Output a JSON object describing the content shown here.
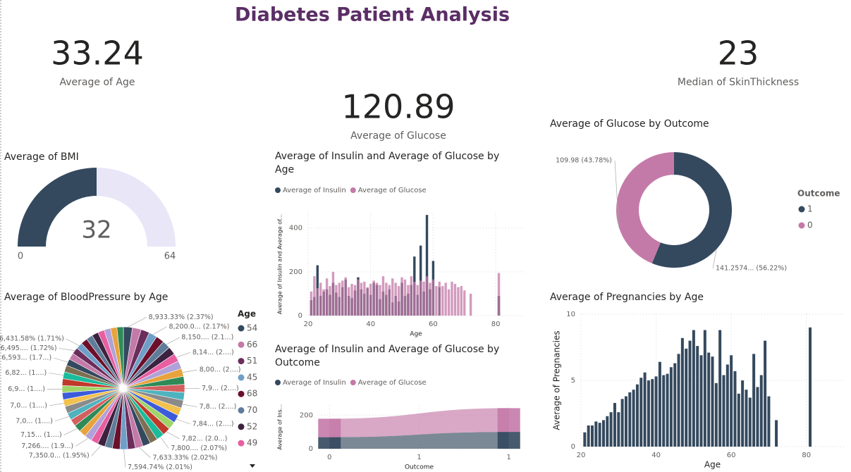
{
  "title": "Diabetes Patient Analysis",
  "cards": [
    {
      "value": 33.24,
      "label": "Average of Age"
    },
    {
      "value": 120.89,
      "label": "Average of Glucose"
    },
    {
      "value": 23,
      "label": "Median of SkinThickness"
    }
  ],
  "chart_data": [
    {
      "type": "gauge",
      "title": "Average of BMI",
      "value": 32,
      "ylim": [
        0,
        64
      ],
      "colors": [
        "#34495e",
        "#e8e6f7"
      ]
    },
    {
      "type": "pie",
      "title": "Average of BloodPressure by Age",
      "values": [
        2.37,
        2.3,
        2.25,
        2.17,
        2.15,
        2.13,
        2.12,
        2.11,
        2.1,
        2.09,
        2.09,
        2.08,
        2.08,
        2.08,
        2.08,
        2.08,
        2.07,
        2.07,
        2.07,
        2.05,
        2.04,
        2.02,
        2.02,
        2.01,
        2.0,
        1.98,
        1.95,
        1.93,
        1.9,
        1.89,
        1.88,
        1.87,
        1.86,
        1.85,
        1.85,
        1.84,
        1.83,
        1.82,
        1.8,
        1.78,
        1.76,
        1.74,
        1.72,
        1.71,
        1.7,
        1.7,
        1.7,
        1.7,
        1.69,
        1.69,
        1.69
      ],
      "value_labels": [
        "8,933.33% (2.37%)",
        null,
        null,
        "8,200.0... (2.17%)",
        null,
        "8,150.... (2.1...)",
        null,
        "8,14... (2....)",
        null,
        "8,00... (2....)",
        null,
        "7,9... (2....)",
        null,
        "7,8... (2....)",
        null,
        "7,84... (2....)",
        null,
        "7,82... (2.0...)",
        "7,800.... (2.07%)",
        null,
        null,
        "7,633.33% (2.02%)",
        null,
        "7,594.74% (2.01%)",
        null,
        null,
        "7,350.0... (1.95%)",
        null,
        "7,266.... (1.9...)",
        null,
        "7,15... (1....)",
        null,
        "7,0... (1....)",
        null,
        "7,0... (1....)",
        null,
        "6,9... (1....)",
        null,
        "6,82... (1....)",
        null,
        "6,593... (1.7...)",
        null,
        "6,495.... (1.72%)",
        "6,431.58% (1.71%)",
        null,
        null,
        null,
        null,
        null,
        null,
        null
      ],
      "colors": [
        "#34495e",
        "#c47aa8",
        "#6b2d5c",
        "#6f9fc8",
        "#6b0f2b",
        "#5f7d9a",
        "#3d2240",
        "#e85ea0",
        "#b0a1d8",
        "#e8a33d",
        "#2e8b57",
        "#d35f5f",
        "#4fb3bf",
        "#8a8a8a",
        "#f2c14e",
        "#3b5bdb",
        "#a0d468",
        "#c0392b",
        "#1abc9c",
        "#7f6f52"
      ],
      "legend_title": "Age",
      "legend": [
        {
          "name": "54",
          "color": "#34495e"
        },
        {
          "name": "66",
          "color": "#c47aa8"
        },
        {
          "name": "51",
          "color": "#6b2d5c"
        },
        {
          "name": "45",
          "color": "#6f9fc8"
        },
        {
          "name": "68",
          "color": "#6b0f2b"
        },
        {
          "name": "70",
          "color": "#5f7d9a"
        },
        {
          "name": "52",
          "color": "#3d2240"
        },
        {
          "name": "49",
          "color": "#e85ea0"
        }
      ]
    },
    {
      "type": "columns",
      "title": "Average of Insulin and Average of Glucose by Age",
      "x_label": "Age",
      "y_label": "Average of Insulin and Average of...",
      "x": [
        21,
        22,
        23,
        24,
        25,
        26,
        27,
        28,
        29,
        30,
        31,
        32,
        33,
        34,
        35,
        36,
        37,
        38,
        39,
        40,
        41,
        42,
        43,
        44,
        45,
        46,
        47,
        48,
        49,
        50,
        51,
        52,
        53,
        54,
        55,
        56,
        57,
        58,
        59,
        60,
        61,
        62,
        63,
        64,
        65,
        66,
        67,
        68,
        69,
        70,
        72,
        81
      ],
      "series": [
        {
          "name": "Average of Insulin",
          "color": "#34495e",
          "values": [
            70,
            85,
            230,
            90,
            110,
            120,
            95,
            150,
            105,
            85,
            130,
            165,
            90,
            80,
            115,
            175,
            120,
            100,
            125,
            95,
            150,
            140,
            75,
            110,
            95,
            120,
            60,
            90,
            65,
            150,
            90,
            100,
            140,
            270,
            95,
            320,
            110,
            460,
            120,
            250,
            0,
            130,
            0,
            0,
            0,
            0,
            0,
            0,
            0,
            0,
            0,
            90
          ]
        },
        {
          "name": "Average of Glucose",
          "color": "#c47aa8",
          "values": [
            110,
            180,
            125,
            150,
            120,
            170,
            135,
            200,
            140,
            150,
            160,
            175,
            130,
            145,
            140,
            165,
            150,
            155,
            130,
            145,
            160,
            150,
            140,
            180,
            150,
            140,
            170,
            150,
            135,
            175,
            165,
            140,
            180,
            155,
            140,
            160,
            155,
            180,
            150,
            165,
            135,
            155,
            135,
            150,
            120,
            155,
            145,
            130,
            135,
            115,
            100,
            195
          ]
        }
      ],
      "xlim": [
        20,
        89
      ],
      "xticks": [
        20,
        40,
        60,
        80
      ],
      "ylim": [
        0,
        470
      ],
      "yticks": [
        0,
        200,
        400
      ],
      "grid": true
    },
    {
      "type": "stacked_area",
      "title": "Average of Insulin and Average of Glucose by Outcome",
      "x_label": "Outcome",
      "y_label": "Average of Ins...",
      "x": [
        0,
        1
      ],
      "series": [
        {
          "name": "Average of Insulin",
          "color": "#34495e",
          "values": [
            68.79,
            100.34
          ]
        },
        {
          "name": "Average of Glucose",
          "color": "#c47aa8",
          "values": [
            109.98,
            141.26
          ]
        }
      ],
      "xlim": [
        -0.06,
        1.06
      ],
      "xticks": [
        0,
        {
          "value": 0.5,
          "label": "1"
        },
        1
      ],
      "ylim": [
        0,
        260
      ],
      "yticks": [
        0,
        200
      ],
      "grid": true
    },
    {
      "type": "donut",
      "title": "Average of Glucose by Outcome",
      "categories": [
        "1",
        "0"
      ],
      "values": [
        141.2574,
        109.98
      ],
      "value_labels": [
        "141.2574... (56.22%)",
        "109.98 (43.78%)"
      ],
      "colors": [
        "#34495e",
        "#c47aa8"
      ],
      "legend_title": "Outcome"
    },
    {
      "type": "bar",
      "title": "Average of Pregnancies by Age",
      "x_label": "Age",
      "y_label": "Average of Pregnancies",
      "x": [
        21,
        22,
        23,
        24,
        25,
        26,
        27,
        28,
        29,
        30,
        31,
        32,
        33,
        34,
        35,
        36,
        37,
        38,
        39,
        40,
        41,
        42,
        43,
        44,
        45,
        46,
        47,
        48,
        49,
        50,
        51,
        52,
        53,
        54,
        55,
        56,
        57,
        58,
        59,
        60,
        61,
        62,
        63,
        64,
        65,
        66,
        67,
        68,
        69,
        70,
        72,
        81
      ],
      "values": [
        1.08,
        1.6,
        1.6,
        1.9,
        1.8,
        2.0,
        2.3,
        2.6,
        3.3,
        2.6,
        3.6,
        3.8,
        4.1,
        4.3,
        4.7,
        5.2,
        5.6,
        5.0,
        5.1,
        5.3,
        6.4,
        5.4,
        5.5,
        6.0,
        6.3,
        7.0,
        8.2,
        7.4,
        8.0,
        8.8,
        7.6,
        6.9,
        8.8,
        7.1,
        6.8,
        4.8,
        8.8,
        5.4,
        6.2,
        6.9,
        5.7,
        4.0,
        5.0,
        4.3,
        3.7,
        7.0,
        4.5,
        5.4,
        8.0,
        3.8,
        2.0,
        9.0
      ],
      "color": "#34495e",
      "xlim": [
        20,
        90
      ],
      "xticks": [
        20,
        40,
        60,
        80
      ],
      "ylim": [
        0,
        10
      ],
      "yticks": [
        0,
        5,
        10
      ],
      "grid": true
    }
  ]
}
